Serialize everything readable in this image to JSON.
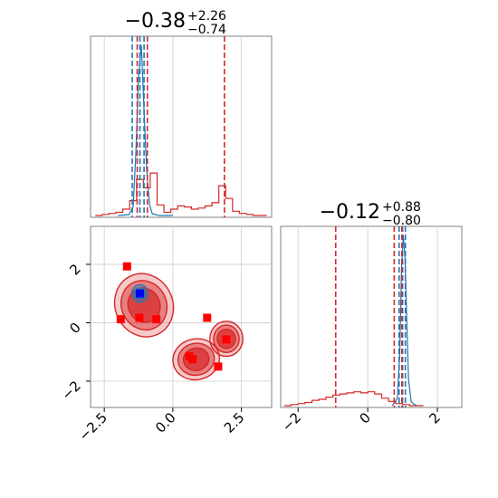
{
  "chart_data": [
    {
      "panel": "top-left",
      "type": "line",
      "title": {
        "main": "−0.38",
        "sup": "+2.26",
        "sub": "−0.74"
      },
      "xlim": [
        -3.0,
        3.6
      ],
      "grid": true,
      "xgrid_values": [
        -2.5,
        0.0,
        2.5
      ],
      "series": [
        {
          "color": "#d62728",
          "style": "step",
          "x": [
            -2.7,
            -2.45,
            -2.2,
            -1.95,
            -1.7,
            -1.45,
            -1.2,
            -0.95,
            -0.7,
            -0.45,
            -0.2,
            0.05,
            0.3,
            0.55,
            0.8,
            1.05,
            1.3,
            1.55,
            1.8,
            2.05,
            2.3,
            2.55,
            2.8,
            3.05,
            3.3
          ],
          "values": [
            0.0,
            0.005,
            0.01,
            0.015,
            0.03,
            0.07,
            0.17,
            0.13,
            0.2,
            0.05,
            0.015,
            0.03,
            0.045,
            0.04,
            0.03,
            0.035,
            0.045,
            0.06,
            0.14,
            0.08,
            0.02,
            0.01,
            0.005,
            0.0,
            0.0
          ]
        },
        {
          "color": "#1f77b4",
          "style": "curve",
          "x": [
            -2.0,
            -1.6,
            -1.45,
            -1.35,
            -1.25,
            -1.15,
            -1.05,
            -0.95,
            -0.85,
            -0.75,
            -0.5,
            0.0
          ],
          "values": [
            0.0,
            0.005,
            0.05,
            0.35,
            0.8,
            0.98,
            0.6,
            0.25,
            0.06,
            0.01,
            0.0,
            0.0
          ]
        }
      ],
      "vlines": [
        {
          "x": -1.48,
          "color": "#1f77b4"
        },
        {
          "x": -1.2,
          "color": "#1f77b4"
        },
        {
          "x": -1.05,
          "color": "#1f77b4"
        },
        {
          "x": -1.3,
          "color": "#d62728"
        },
        {
          "x": -0.93,
          "color": "#d62728"
        },
        {
          "x": 1.88,
          "color": "#d62728"
        }
      ]
    },
    {
      "panel": "bottom-left",
      "type": "scatter",
      "xlim": [
        -3.0,
        3.6
      ],
      "ylim": [
        -2.9,
        3.3
      ],
      "grid": true,
      "x_ticks": [
        "−2.5",
        "0.0",
        "2.5"
      ],
      "y_ticks": [
        "−2",
        "0",
        "2"
      ],
      "x_tick_values": [
        -2.5,
        0.0,
        2.5
      ],
      "y_tick_values": [
        -2,
        0,
        2
      ],
      "red_points": [
        {
          "x": -1.67,
          "y": 1.93
        },
        {
          "x": -1.9,
          "y": 0.12
        },
        {
          "x": -1.22,
          "y": 0.17
        },
        {
          "x": -0.6,
          "y": 0.12
        },
        {
          "x": 1.25,
          "y": 0.17
        },
        {
          "x": 0.6,
          "y": -1.15
        },
        {
          "x": 0.72,
          "y": -1.25
        },
        {
          "x": 1.65,
          "y": -1.5
        },
        {
          "x": 1.95,
          "y": -0.57
        }
      ],
      "blue_points": [
        {
          "x": -1.2,
          "y": 1.0
        }
      ],
      "red_contours": [
        {
          "cx": -1.05,
          "cy": 0.6,
          "rx": 1.05,
          "ry": 1.1,
          "rot": 25
        },
        {
          "cx": 0.85,
          "cy": -1.25,
          "rx": 0.85,
          "ry": 0.7,
          "rot": 10
        },
        {
          "cx": 1.95,
          "cy": -0.55,
          "rx": 0.6,
          "ry": 0.6,
          "rot": 0
        }
      ],
      "blue_contours": [
        {
          "cx": -1.2,
          "cy": 1.0,
          "rx": 0.3,
          "ry": 0.3,
          "rot": 0
        }
      ],
      "colors": {
        "red": "#d62728",
        "blue": "#1f77b4",
        "square_red": "#ff0000",
        "square_blue": "#0000ff"
      }
    },
    {
      "panel": "bottom-right",
      "type": "line",
      "title": {
        "main": "−0.12",
        "sup": "+0.88",
        "sub": "−0.80"
      },
      "xlim": [
        -2.5,
        2.7
      ],
      "grid": true,
      "x_ticks": [
        "−2",
        "0",
        "2"
      ],
      "x_tick_values": [
        -2,
        0,
        2
      ],
      "series": [
        {
          "color": "#d62728",
          "style": "step",
          "x": [
            -2.3,
            -2.1,
            -1.9,
            -1.7,
            -1.5,
            -1.3,
            -1.1,
            -0.9,
            -0.7,
            -0.5,
            -0.3,
            -0.1,
            0.1,
            0.3,
            0.5,
            0.7,
            0.9,
            1.1,
            1.3,
            1.5
          ],
          "values": [
            0.0,
            0.005,
            0.01,
            0.015,
            0.025,
            0.03,
            0.04,
            0.05,
            0.055,
            0.06,
            0.065,
            0.06,
            0.065,
            0.055,
            0.035,
            0.02,
            0.01,
            0.005,
            0.0,
            0.0
          ]
        },
        {
          "color": "#1f77b4",
          "style": "curve",
          "x": [
            0.7,
            0.85,
            0.92,
            0.97,
            1.02,
            1.07,
            1.12,
            1.17,
            1.25,
            1.4
          ],
          "values": [
            0.0,
            0.04,
            0.3,
            0.8,
            0.98,
            0.85,
            0.5,
            0.15,
            0.02,
            0.0
          ]
        }
      ],
      "vlines": [
        {
          "x": 0.9,
          "color": "#1f77b4"
        },
        {
          "x": 1.0,
          "color": "#1f77b4"
        },
        {
          "x": 1.08,
          "color": "#1f77b4"
        },
        {
          "x": -0.92,
          "color": "#d62728"
        },
        {
          "x": 0.76,
          "color": "#d62728"
        },
        {
          "x": 0.98,
          "color": "#d62728"
        }
      ]
    }
  ]
}
